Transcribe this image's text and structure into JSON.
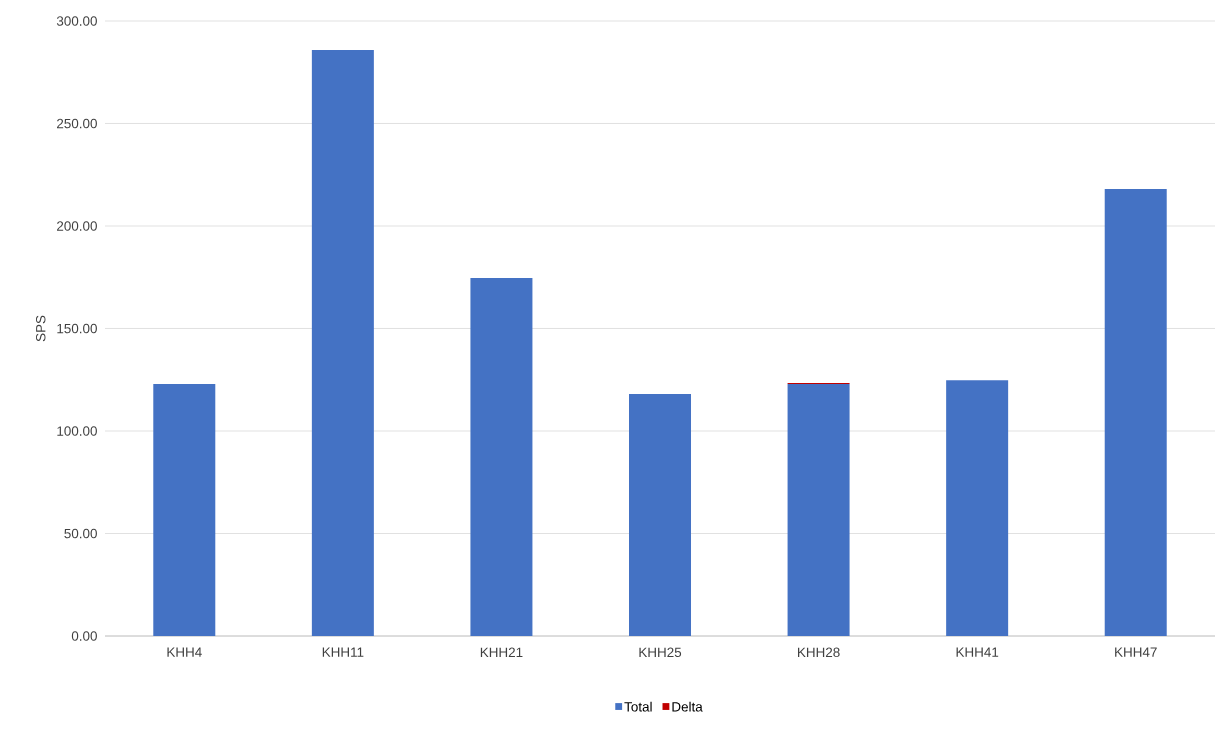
{
  "chart_data": {
    "type": "bar",
    "ylabel": "SPS",
    "stacked": true,
    "categories": [
      "KHH4",
      "KHH11",
      "KHH21",
      "KHH25",
      "KHH28",
      "KHH41",
      "KHH47"
    ],
    "series": [
      {
        "name": "Total",
        "color": "#4472c4",
        "values": [
          122.9,
          285.9,
          174.6,
          118.0,
          122.9,
          124.7,
          218.0
        ]
      },
      {
        "name": "Delta",
        "color": "#c00000",
        "values": [
          0,
          0,
          0,
          0,
          0.5,
          0,
          0
        ]
      }
    ],
    "ylim": [
      0,
      300
    ],
    "yticks": [
      {
        "value": 0,
        "label": "0.00"
      },
      {
        "value": 50,
        "label": "50.00"
      },
      {
        "value": 100,
        "label": "100.00"
      },
      {
        "value": 150,
        "label": "150.00"
      },
      {
        "value": 200,
        "label": "200.00"
      },
      {
        "value": 250,
        "label": "250.00"
      },
      {
        "value": 300,
        "label": "300.00"
      }
    ],
    "grid": "y",
    "legend": "bottom"
  }
}
